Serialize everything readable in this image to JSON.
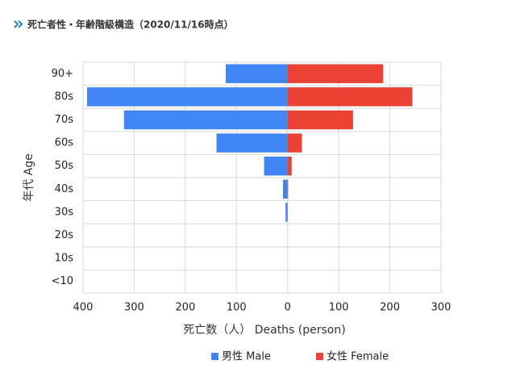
{
  "chart_data": {
    "type": "pyramid",
    "title": "死亡者性・年齢階級構造（2020/11/16時点）",
    "x_label": "死亡数（人） Deaths (person)",
    "y_label": "年代 Age",
    "categories": [
      "90+",
      "80s",
      "70s",
      "60s",
      "50s",
      "40s",
      "30s",
      "20s",
      "10s",
      "<10"
    ],
    "series": [
      {
        "name": "男性 Male",
        "color": "#4285f4",
        "values": [
          -121,
          -392,
          -320,
          -139,
          -46,
          -9,
          -4,
          0,
          0,
          0
        ]
      },
      {
        "name": "女性 Female",
        "color": "#ea4335",
        "values": [
          187,
          244,
          128,
          28,
          8,
          1,
          0,
          0,
          0,
          0
        ]
      }
    ],
    "xlim": [
      -400,
      300
    ],
    "xticks": [
      {
        "value": -400,
        "label": "400"
      },
      {
        "value": -300,
        "label": "300"
      },
      {
        "value": -200,
        "label": "200"
      },
      {
        "value": -100,
        "label": "100"
      },
      0,
      100,
      200,
      300
    ],
    "grid": true,
    "legend": "bottom"
  }
}
